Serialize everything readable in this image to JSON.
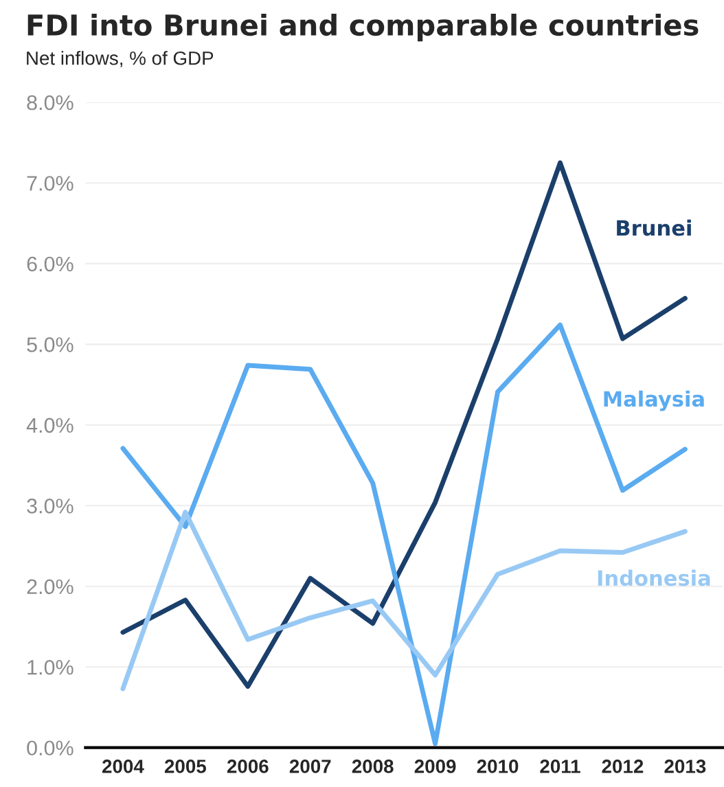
{
  "chart_data": {
    "type": "line",
    "title": "FDI into Brunei and comparable countries",
    "subtitle": "Net inflows, % of GDP",
    "categories": [
      "2004",
      "2005",
      "2006",
      "2007",
      "2008",
      "2009",
      "2010",
      "2011",
      "2012",
      "2013"
    ],
    "series": [
      {
        "name": "Brunei",
        "color": "#1b3f6b",
        "values": [
          1.43,
          1.83,
          0.76,
          2.1,
          1.54,
          3.04,
          5.07,
          7.25,
          5.07,
          5.57
        ]
      },
      {
        "name": "Malaysia",
        "color": "#5aabf0",
        "values": [
          3.71,
          2.74,
          4.74,
          4.69,
          3.28,
          0.05,
          4.41,
          5.24,
          3.19,
          3.7
        ]
      },
      {
        "name": "Indonesia",
        "color": "#98c9f4",
        "values": [
          0.73,
          2.92,
          1.34,
          1.61,
          1.82,
          0.9,
          2.15,
          2.44,
          2.42,
          2.68
        ]
      }
    ],
    "ylim": [
      0,
      8
    ],
    "yticks": [
      {
        "value": 0,
        "label": "0.0%"
      },
      {
        "value": 1,
        "label": "1.0%"
      },
      {
        "value": 2,
        "label": "2.0%"
      },
      {
        "value": 3,
        "label": "3.0%"
      },
      {
        "value": 4,
        "label": "4.0%"
      },
      {
        "value": 5,
        "label": "5.0%"
      },
      {
        "value": 6,
        "label": "6.0%"
      },
      {
        "value": 7,
        "label": "7.0%"
      },
      {
        "value": 8,
        "label": "8.0%"
      }
    ],
    "grid": "y",
    "legend": false,
    "marker": "none",
    "line_style": "solid"
  }
}
